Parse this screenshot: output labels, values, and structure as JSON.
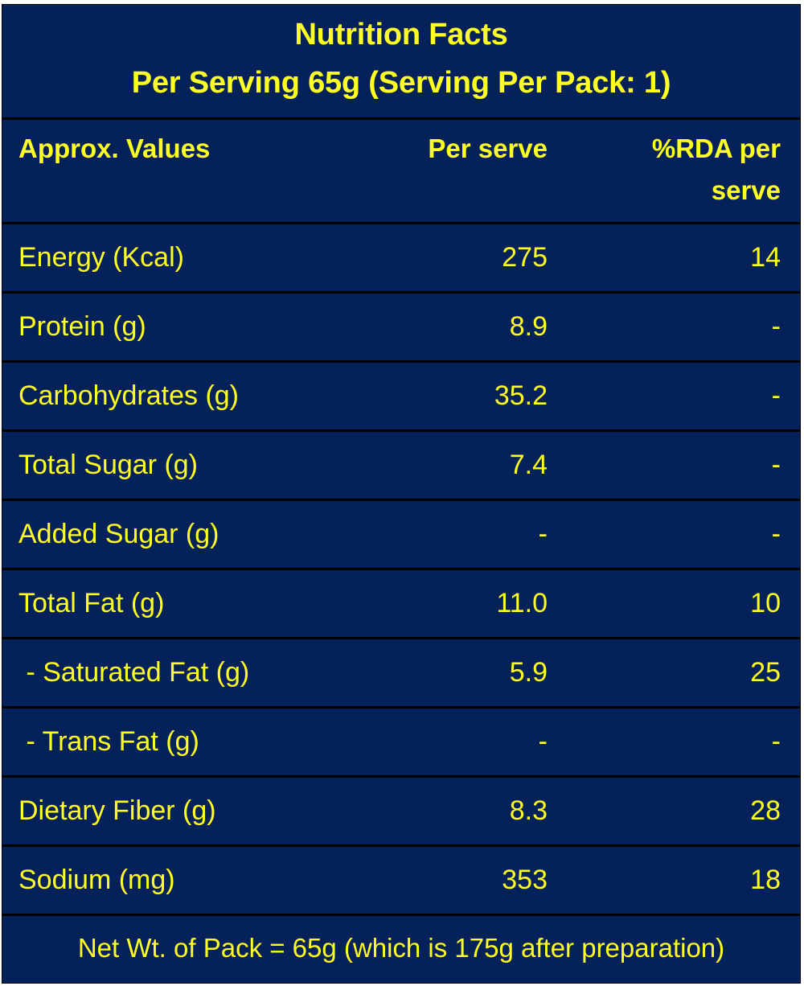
{
  "colors": {
    "background": "#052159",
    "text": "#ffff22",
    "rule": "#000000"
  },
  "title": "Nutrition Facts",
  "subtitle": "Per Serving 65g (Serving Per Pack: 1)",
  "table": {
    "headers": [
      "Approx. Values",
      "Per serve",
      "%RDA per serve"
    ],
    "header_rda_line1": "%RDA per",
    "header_rda_line2": "serve",
    "rows": [
      {
        "label": "Energy (Kcal)",
        "per_serve": "275",
        "rda": "14"
      },
      {
        "label": "Protein (g)",
        "per_serve": "8.9",
        "rda": "-"
      },
      {
        "label": "Carbohydrates (g)",
        "per_serve": "35.2",
        "rda": "-"
      },
      {
        "label": "Total Sugar (g)",
        "per_serve": "7.4",
        "rda": "-"
      },
      {
        "label": "Added Sugar (g)",
        "per_serve": "-",
        "rda": "-"
      },
      {
        "label": "Total Fat (g)",
        "per_serve": "11.0",
        "rda": "10"
      },
      {
        "label": " - Saturated Fat (g)",
        "per_serve": "5.9",
        "rda": "25"
      },
      {
        "label": " - Trans Fat (g)",
        "per_serve": "-",
        "rda": "-"
      },
      {
        "label": "Dietary Fiber (g)",
        "per_serve": "8.3",
        "rda": "28"
      },
      {
        "label": "Sodium (mg)",
        "per_serve": "353",
        "rda": "18"
      }
    ]
  },
  "footer": "Net Wt. of Pack = 65g (which is 175g after preparation)"
}
